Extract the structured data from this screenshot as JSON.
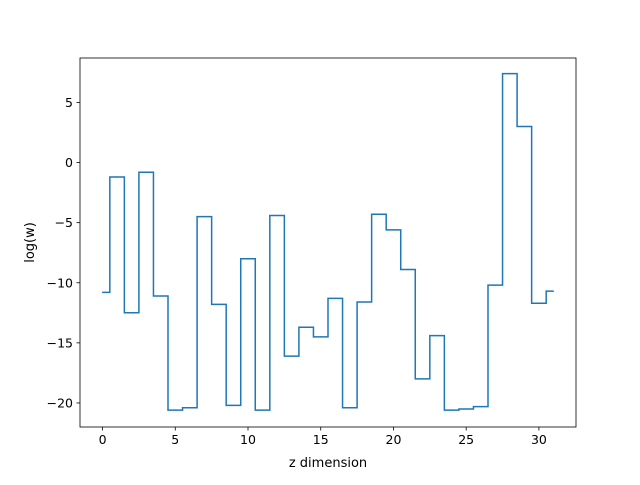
{
  "chart_data": {
    "type": "line",
    "drawstyle": "steps-mid",
    "xlabel": "z dimension",
    "ylabel": "log(w)",
    "xlim": [
      -1.55,
      32.55
    ],
    "ylim": [
      -22.0,
      8.7
    ],
    "xticks": [
      0,
      5,
      10,
      15,
      20,
      25,
      30
    ],
    "yticks": [
      -20,
      -15,
      -10,
      -5,
      0,
      5
    ],
    "grid": false,
    "series": [
      {
        "color": "#1f77b4",
        "x": [
          0,
          1,
          2,
          3,
          4,
          5,
          6,
          7,
          8,
          9,
          10,
          11,
          12,
          13,
          14,
          15,
          16,
          17,
          18,
          19,
          20,
          21,
          22,
          23,
          24,
          25,
          26,
          27,
          28,
          29,
          30,
          31
        ],
        "y": [
          -10.8,
          -1.2,
          -12.5,
          -0.8,
          -11.1,
          -20.6,
          -20.4,
          -4.5,
          -11.8,
          -20.2,
          -8.0,
          -20.6,
          -4.4,
          -16.1,
          -13.7,
          -14.5,
          -11.3,
          -20.4,
          -11.6,
          -4.3,
          -5.6,
          -8.9,
          -18.0,
          -14.4,
          -20.6,
          -20.5,
          -20.3,
          -10.2,
          7.4,
          3.0,
          -11.7,
          -10.7
        ]
      }
    ]
  }
}
